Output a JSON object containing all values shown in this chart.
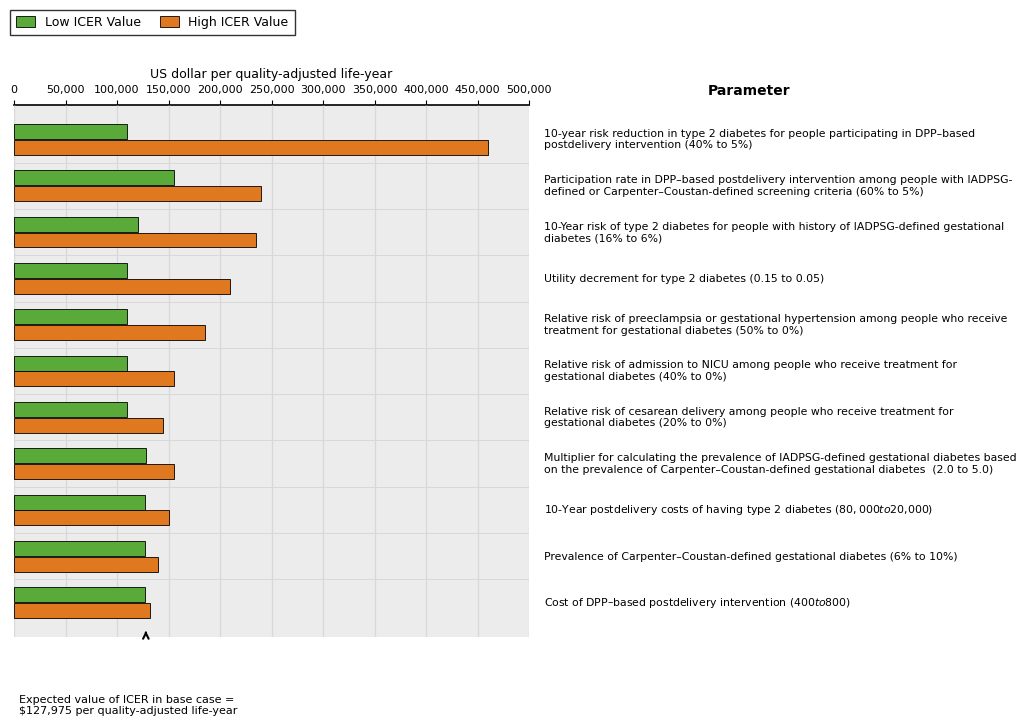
{
  "parameters": [
    "10-year risk reduction in type 2 diabetes for people participating in DPP–based\npostdelivery intervention (40% to 5%)",
    "Participation rate in DPP–based postdelivery intervention among people with IADPSG-\ndefined or Carpenter–Coustan-defined screening criteria (60% to 5%)",
    "10-Year risk of type 2 diabetes for people with history of IADPSG-defined gestational\ndiabetes (16% to 6%)",
    "Utility decrement for type 2 diabetes (0.15 to 0.05)",
    "Relative risk of preeclampsia or gestational hypertension among people who receive\ntreatment for gestational diabetes (50% to 0%)",
    "Relative risk of admission to NICU among people who receive treatment for\ngestational diabetes (40% to 0%)",
    "Relative risk of cesarean delivery among people who receive treatment for\ngestational diabetes (20% to 0%)",
    "Multiplier for calculating the prevalence of IADPSG-defined gestational diabetes based\non the prevalence of Carpenter–Coustan-defined gestational diabetes  (2.0 to 5.0)",
    "10-Year postdelivery costs of having type 2 diabetes ($80,000 to $20,000)",
    "Prevalence of Carpenter–Coustan-defined gestational diabetes (6% to 10%)",
    "Cost of DPP–based postdelivery intervention ($400 to $800)"
  ],
  "low_icer": [
    110000,
    155000,
    120000,
    110000,
    110000,
    110000,
    110000,
    128000,
    127000,
    127000,
    127500
  ],
  "high_icer": [
    460000,
    240000,
    235000,
    210000,
    185000,
    155000,
    145000,
    155000,
    150000,
    140000,
    132000
  ],
  "base_case": 127975,
  "xlim": [
    0,
    500000
  ],
  "xticks": [
    0,
    50000,
    100000,
    150000,
    200000,
    250000,
    300000,
    350000,
    400000,
    450000,
    500000
  ],
  "xlabel": "US dollar per quality-adjusted life-year",
  "legend_label_low": "Low ICER Value",
  "legend_label_high": "High ICER Value",
  "color_low": "#5aaa3a",
  "color_high": "#e07820",
  "param_header": "Parameter",
  "base_case_label": "Expected value of ICER in base case =\n$127,975 per quality-adjusted life-year",
  "grid_color": "#d8d8d8",
  "bg_color": "#ececec"
}
